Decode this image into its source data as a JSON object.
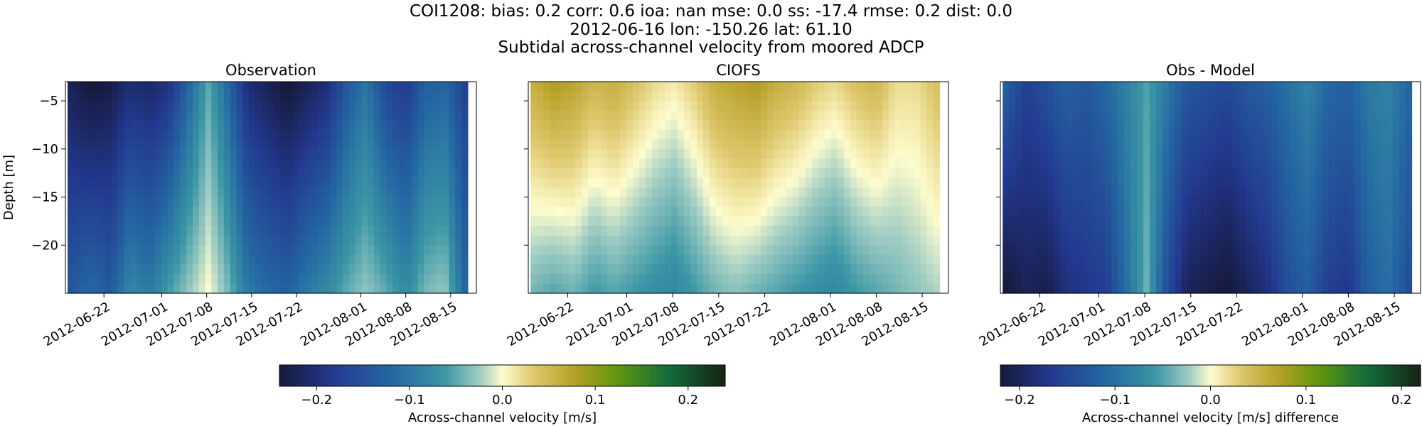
{
  "figure": {
    "suptitle_line1": "COI1208: bias: 0.2  corr: 0.6  ioa: nan  mse: 0.0  ss: -17.4  rmse: 0.2  dist: 0.0",
    "suptitle_line2": "2012-06-16 lon: -150.26 lat: 61.10",
    "suptitle_line3": "Subtidal across-channel velocity from moored ADCP"
  },
  "chart_data": [
    {
      "type": "heatmap",
      "title": "Observation",
      "xlabel": "",
      "ylabel": "Depth [m]",
      "x_ticks": [
        "2012-06-22",
        "2012-07-01",
        "2012-07-08",
        "2012-07-15",
        "2012-07-22",
        "2012-08-01",
        "2012-08-08",
        "2012-08-15"
      ],
      "y_ticks": [
        -5,
        -10,
        -15,
        -20
      ],
      "xlim": [
        "2012-06-16",
        "2012-08-19"
      ],
      "ylim": [
        -25,
        -3
      ],
      "colormap": "delta",
      "clim": [
        -0.24,
        0.24
      ],
      "description_values": {
        "time_columns": [
          "2012-06-17",
          "2012-06-22",
          "2012-06-27",
          "2012-07-01",
          "2012-07-05",
          "2012-07-08",
          "2012-07-11",
          "2012-07-13",
          "2012-07-15",
          "2012-07-18",
          "2012-07-22",
          "2012-07-26",
          "2012-07-29",
          "2012-08-01",
          "2012-08-04",
          "2012-08-06",
          "2012-08-08",
          "2012-08-11",
          "2012-08-13",
          "2012-08-15",
          "2012-08-17"
        ],
        "surface_velocity": [
          -0.22,
          -0.24,
          -0.23,
          -0.2,
          -0.21,
          -0.19,
          -0.12,
          -0.05,
          -0.12,
          -0.2,
          -0.22,
          -0.24,
          -0.22,
          -0.2,
          -0.14,
          -0.1,
          -0.16,
          -0.18,
          -0.13,
          -0.12,
          -0.17
        ],
        "bottom_velocity": [
          -0.14,
          -0.12,
          -0.14,
          -0.08,
          -0.1,
          -0.06,
          -0.03,
          0.0,
          -0.04,
          -0.1,
          -0.12,
          -0.13,
          -0.1,
          -0.08,
          -0.05,
          -0.03,
          -0.05,
          -0.08,
          -0.04,
          -0.03,
          -0.12
        ]
      }
    },
    {
      "type": "heatmap",
      "title": "CIOFS",
      "xlabel": "",
      "ylabel": "",
      "x_ticks": [
        "2012-06-22",
        "2012-07-01",
        "2012-07-08",
        "2012-07-15",
        "2012-07-22",
        "2012-08-01",
        "2012-08-08",
        "2012-08-15"
      ],
      "xlim": [
        "2012-06-16",
        "2012-08-19"
      ],
      "ylim": [
        -25,
        -3
      ],
      "colormap": "delta",
      "clim": [
        -0.24,
        0.24
      ],
      "description_values": {
        "time_columns": [
          "2012-06-17",
          "2012-06-22",
          "2012-06-27",
          "2012-07-01",
          "2012-07-05",
          "2012-07-08",
          "2012-07-11",
          "2012-07-13",
          "2012-07-15",
          "2012-07-18",
          "2012-07-22",
          "2012-07-26",
          "2012-07-29",
          "2012-08-01",
          "2012-08-04",
          "2012-08-06",
          "2012-08-08",
          "2012-08-11",
          "2012-08-13",
          "2012-08-15",
          "2012-08-17"
        ],
        "surface_velocity": [
          0.06,
          0.08,
          0.07,
          0.05,
          0.06,
          0.04,
          0.02,
          0.01,
          0.03,
          0.06,
          0.07,
          0.08,
          0.06,
          0.05,
          0.03,
          0.02,
          0.04,
          0.05,
          0.02,
          0.02,
          0.04
        ],
        "bottom_velocity": [
          -0.04,
          -0.05,
          -0.04,
          -0.06,
          -0.05,
          -0.06,
          -0.07,
          -0.08,
          -0.06,
          -0.04,
          -0.03,
          -0.04,
          -0.05,
          -0.06,
          -0.07,
          -0.08,
          -0.06,
          -0.05,
          -0.04,
          -0.03,
          -0.02
        ]
      }
    },
    {
      "type": "heatmap",
      "title": "Obs - Model",
      "xlabel": "",
      "ylabel": "",
      "x_ticks": [
        "2012-06-22",
        "2012-07-01",
        "2012-07-08",
        "2012-07-15",
        "2012-07-22",
        "2012-08-01",
        "2012-08-08",
        "2012-08-15"
      ],
      "xlim": [
        "2012-06-16",
        "2012-08-19"
      ],
      "ylim": [
        -25,
        -3
      ],
      "colormap": "delta",
      "clim": [
        -0.22,
        0.22
      ],
      "description_values": {
        "time_columns": [
          "2012-06-17",
          "2012-06-22",
          "2012-06-27",
          "2012-07-01",
          "2012-07-05",
          "2012-07-08",
          "2012-07-11",
          "2012-07-13",
          "2012-07-15",
          "2012-07-18",
          "2012-07-22",
          "2012-07-26",
          "2012-07-29",
          "2012-08-01",
          "2012-08-04",
          "2012-08-06",
          "2012-08-08",
          "2012-08-11",
          "2012-08-13",
          "2012-08-15",
          "2012-08-17"
        ],
        "surface_velocity": [
          -0.12,
          -0.16,
          -0.14,
          -0.12,
          -0.13,
          -0.11,
          -0.08,
          -0.05,
          -0.09,
          -0.13,
          -0.14,
          -0.15,
          -0.13,
          -0.12,
          -0.1,
          -0.08,
          -0.11,
          -0.12,
          -0.09,
          -0.08,
          -0.11
        ],
        "bottom_velocity": [
          -0.22,
          -0.2,
          -0.21,
          -0.18,
          -0.17,
          -0.16,
          -0.1,
          -0.04,
          -0.14,
          -0.2,
          -0.21,
          -0.22,
          -0.2,
          -0.18,
          -0.14,
          -0.12,
          -0.16,
          -0.17,
          -0.12,
          -0.1,
          -0.14
        ]
      }
    }
  ],
  "colorbars": [
    {
      "label": "Across-channel velocity [m/s]",
      "ticks": [
        "−0.2",
        "−0.1",
        "0.0",
        "0.1",
        "0.2"
      ],
      "tick_values": [
        -0.2,
        -0.1,
        0.0,
        0.1,
        0.2
      ],
      "range": [
        -0.24,
        0.24
      ]
    },
    {
      "label": "Across-channel velocity [m/s] difference",
      "ticks": [
        "−0.2",
        "−0.1",
        "0.0",
        "0.1",
        "0.2"
      ],
      "tick_values": [
        -0.2,
        -0.1,
        0.0,
        0.1,
        0.2
      ],
      "range": [
        -0.22,
        0.22
      ]
    }
  ]
}
